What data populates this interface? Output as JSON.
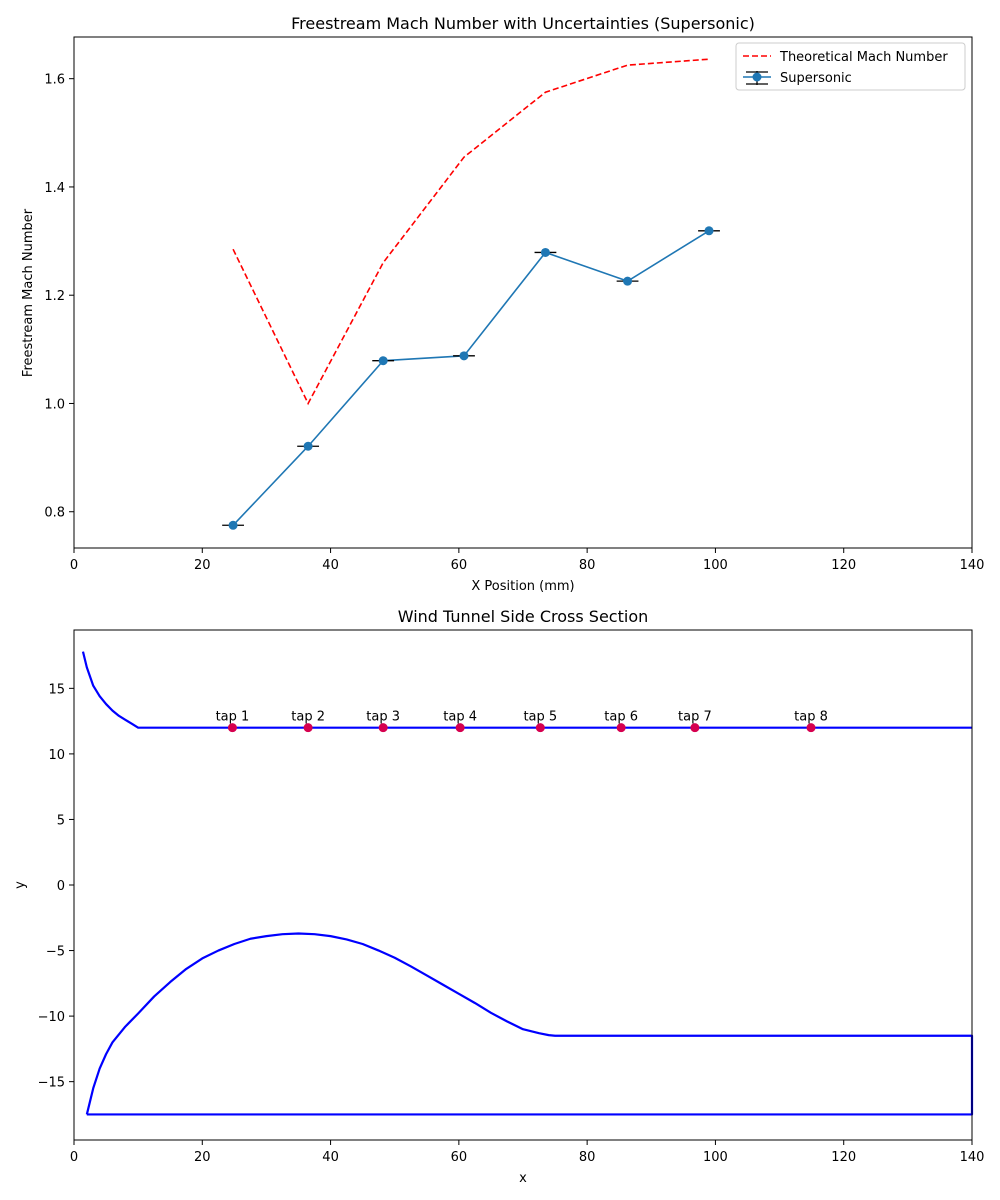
{
  "chart_data": [
    {
      "type": "line",
      "title": "Freestream Mach Number with Uncertainties (Supersonic)",
      "xlabel": "X Position (mm)",
      "ylabel": "Freestream Mach Number",
      "xlim": [
        0,
        140
      ],
      "ylim": [
        0.733,
        1.677
      ],
      "xticks": [
        0,
        20,
        40,
        60,
        80,
        100,
        120,
        140
      ],
      "yticks": [
        0.8,
        1.0,
        1.2,
        1.4,
        1.6
      ],
      "xtick_labels": [
        "0",
        "20",
        "40",
        "60",
        "80",
        "100",
        "120",
        "140"
      ],
      "ytick_labels": [
        "0.8",
        "1.0",
        "1.2",
        "1.4",
        "1.6"
      ],
      "grid": false,
      "legend_position": "top-right",
      "series": [
        {
          "name": "Theoretical Mach Number",
          "style": "dashed",
          "color": "#ff0000",
          "x": [
            24.8,
            36.5,
            48.2,
            60.8,
            73.5,
            86.3,
            99.0
          ],
          "y": [
            1.285,
            1.0,
            1.26,
            1.455,
            1.575,
            1.625,
            1.636
          ]
        },
        {
          "name": "Supersonic",
          "style": "solid-markers",
          "color": "#1f77b4",
          "x": [
            24.8,
            36.5,
            48.2,
            60.8,
            73.5,
            86.3,
            99.0
          ],
          "y": [
            0.775,
            0.921,
            1.079,
            1.088,
            1.279,
            1.226,
            1.319
          ],
          "x_err": [
            1.7,
            1.7,
            1.7,
            1.7,
            1.7,
            1.7,
            1.7
          ]
        }
      ]
    },
    {
      "type": "line",
      "title": "Wind Tunnel Side Cross Section",
      "xlabel": "x",
      "ylabel": "y",
      "xlim": [
        0,
        140
      ],
      "ylim": [
        -19.45,
        19.45
      ],
      "xticks": [
        0,
        20,
        40,
        60,
        80,
        100,
        120,
        140
      ],
      "yticks": [
        -15,
        -10,
        -5,
        0,
        5,
        10,
        15
      ],
      "xtick_labels": [
        "0",
        "20",
        "40",
        "60",
        "80",
        "100",
        "120",
        "140"
      ],
      "ytick_labels": [
        "−15",
        "−10",
        "−5",
        "0",
        "5",
        "10",
        "15"
      ],
      "grid": false,
      "series": [
        {
          "color": "#0000ff",
          "x": [
            1.4,
            2,
            3,
            4,
            5,
            6,
            7,
            8,
            9,
            10,
            140
          ],
          "y": [
            17.8,
            16.6,
            15.2,
            14.4,
            13.8,
            13.3,
            12.9,
            12.6,
            12.3,
            12.0,
            12.0
          ]
        },
        {
          "color": "#0000ff",
          "x": [
            2,
            3,
            4,
            5,
            6,
            8,
            10,
            12.5,
            15,
            17.5,
            20,
            22.5,
            25,
            27.5,
            30,
            32.5,
            35,
            37.5,
            40,
            42.5,
            45,
            47.5,
            50,
            52.5,
            55,
            57.5,
            60,
            62.5,
            65,
            67.5,
            70,
            72.5,
            74,
            75,
            76,
            140,
            140,
            2
          ],
          "y": [
            -17.5,
            -15.5,
            -14.0,
            -12.9,
            -12.0,
            -10.8,
            -9.8,
            -8.5,
            -7.4,
            -6.4,
            -5.6,
            -5.0,
            -4.5,
            -4.1,
            -3.9,
            -3.75,
            -3.7,
            -3.75,
            -3.9,
            -4.15,
            -4.5,
            -5.0,
            -5.55,
            -6.2,
            -6.9,
            -7.6,
            -8.3,
            -9.0,
            -9.75,
            -10.4,
            -11.0,
            -11.3,
            -11.45,
            -11.5,
            -11.5,
            -11.5,
            -17.5,
            -17.5
          ]
        }
      ],
      "taps": {
        "color": "#d6004f",
        "y": 12.0,
        "x": [
          24.7,
          36.5,
          48.2,
          60.2,
          72.7,
          85.3,
          96.8,
          114.9
        ],
        "labels": [
          "tap 1",
          "tap 2",
          "tap 3",
          "tap 4",
          "tap 5",
          "tap 6",
          "tap 7",
          "tap 8"
        ]
      }
    }
  ]
}
